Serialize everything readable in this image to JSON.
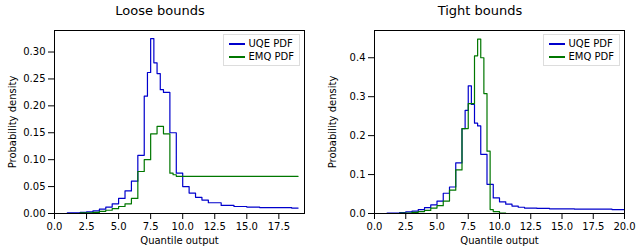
{
  "chart_data": [
    {
      "type": "step",
      "title": "Loose bounds",
      "xlabel": "Quantile output",
      "ylabel": "Probability density",
      "xlim": [
        0.0,
        19.5
      ],
      "ylim": [
        0.0,
        0.34
      ],
      "xticks": [
        {
          "value": 0.0,
          "label": "0.0"
        },
        2.5,
        {
          "value": 5.0,
          "label": "5.0"
        },
        7.5,
        {
          "value": 10.0,
          "label": "10.0"
        },
        12.5,
        {
          "value": 15.0,
          "label": "15.0"
        },
        17.5
      ],
      "yticks": [
        {
          "value": 0.0,
          "label": "0.00"
        },
        0.05,
        {
          "value": 0.1,
          "label": "0.10"
        },
        0.15,
        {
          "value": 0.2,
          "label": "0.20"
        },
        0.25,
        {
          "value": 0.3,
          "label": "0.30"
        }
      ],
      "legend": "upper right",
      "series": [
        {
          "name": "UQE PDF",
          "color": "#0000cc",
          "x": [
            0.0,
            0.5,
            1.0,
            1.5,
            2.0,
            2.5,
            3.0,
            3.5,
            4.0,
            4.5,
            5.0,
            5.5,
            6.0,
            6.5,
            7.0,
            7.25,
            7.5,
            7.75,
            8.0,
            8.25,
            8.5,
            9.0,
            9.5,
            10.0,
            10.5,
            11.0,
            11.5,
            12.0,
            13.0,
            14.0,
            15.0,
            16.0,
            17.0,
            17.5,
            18.0,
            18.5,
            19.0
          ],
          "values": [
            0.0,
            0.0,
            0.001,
            0.001,
            0.002,
            0.003,
            0.005,
            0.008,
            0.012,
            0.018,
            0.028,
            0.042,
            0.06,
            0.108,
            0.218,
            0.262,
            0.325,
            0.28,
            0.26,
            0.23,
            0.225,
            0.15,
            0.075,
            0.05,
            0.038,
            0.03,
            0.025,
            0.02,
            0.015,
            0.013,
            0.012,
            0.011,
            0.011,
            0.011,
            0.011,
            0.01,
            0.01
          ]
        },
        {
          "name": "EMQ PDF",
          "color": "#007700",
          "x": [
            0.0,
            1.0,
            2.0,
            3.0,
            3.5,
            4.0,
            4.5,
            5.0,
            5.5,
            6.0,
            6.5,
            7.0,
            7.5,
            8.0,
            8.5,
            9.0,
            9.25,
            9.5,
            10.0,
            10.5,
            11.0,
            12.0,
            13.0,
            14.0,
            15.0,
            16.0,
            17.0,
            17.5,
            18.0,
            18.5,
            19.0
          ],
          "values": [
            0.0,
            0.0,
            0.001,
            0.002,
            0.004,
            0.006,
            0.009,
            0.013,
            0.018,
            0.028,
            0.078,
            0.1,
            0.148,
            0.162,
            0.148,
            0.075,
            0.072,
            0.069,
            0.069,
            0.069,
            0.069,
            0.069,
            0.069,
            0.069,
            0.069,
            0.069,
            0.069,
            0.069,
            0.069,
            0.069,
            0.069
          ]
        }
      ]
    },
    {
      "type": "step",
      "title": "Tight bounds",
      "xlabel": "Quantile output",
      "ylabel": "Probability density",
      "xlim": [
        0.0,
        20.0
      ],
      "ylim": [
        0.0,
        0.47
      ],
      "xticks": [
        {
          "value": 0.0,
          "label": "0.0"
        },
        2.5,
        {
          "value": 5.0,
          "label": "5.0"
        },
        7.5,
        {
          "value": 10.0,
          "label": "10.0"
        },
        12.5,
        {
          "value": 15.0,
          "label": "15.0"
        },
        17.5,
        {
          "value": 20.0,
          "label": "20.0"
        }
      ],
      "yticks": [
        {
          "value": 0.0,
          "label": "0.0"
        },
        0.1,
        0.2,
        0.3,
        0.4
      ],
      "legend": "upper right",
      "series": [
        {
          "name": "UQE PDF",
          "color": "#0000cc",
          "x": [
            0.0,
            0.5,
            1.0,
            1.5,
            2.0,
            2.5,
            3.0,
            3.5,
            4.0,
            4.5,
            5.0,
            5.5,
            6.0,
            6.5,
            7.0,
            7.25,
            7.5,
            7.75,
            8.0,
            8.25,
            8.5,
            9.0,
            9.5,
            10.0,
            10.5,
            11.0,
            11.5,
            12.0,
            13.0,
            14.0,
            15.0,
            16.0,
            17.0,
            18.0,
            19.0,
            20.0
          ],
          "values": [
            0.0,
            0.0,
            0.001,
            0.001,
            0.002,
            0.004,
            0.006,
            0.01,
            0.015,
            0.022,
            0.032,
            0.052,
            0.068,
            0.13,
            0.218,
            0.265,
            0.328,
            0.28,
            0.232,
            0.225,
            0.152,
            0.075,
            0.04,
            0.03,
            0.024,
            0.019,
            0.016,
            0.014,
            0.013,
            0.012,
            0.012,
            0.011,
            0.011,
            0.011,
            0.01,
            0.01
          ]
        },
        {
          "name": "EMQ PDF",
          "color": "#007700",
          "x": [
            0.0,
            1.0,
            2.0,
            3.0,
            3.5,
            4.0,
            4.5,
            5.0,
            5.5,
            6.0,
            6.5,
            7.0,
            7.5,
            8.0,
            8.25,
            8.5,
            8.75,
            9.0,
            9.25,
            9.5,
            10.0,
            10.5,
            11.0,
            12.0,
            13.0,
            14.0,
            15.0,
            16.0,
            17.0,
            18.0,
            19.0,
            20.0
          ],
          "values": [
            0.0,
            0.0,
            0.001,
            0.003,
            0.005,
            0.008,
            0.014,
            0.02,
            0.032,
            0.06,
            0.112,
            0.218,
            0.282,
            0.405,
            0.448,
            0.4,
            0.308,
            0.16,
            0.01,
            0.005,
            0.001,
            0.0,
            0.0,
            0.0,
            0.0,
            0.0,
            0.0,
            0.0,
            0.0,
            0.0,
            0.0,
            0.0
          ]
        }
      ]
    }
  ]
}
